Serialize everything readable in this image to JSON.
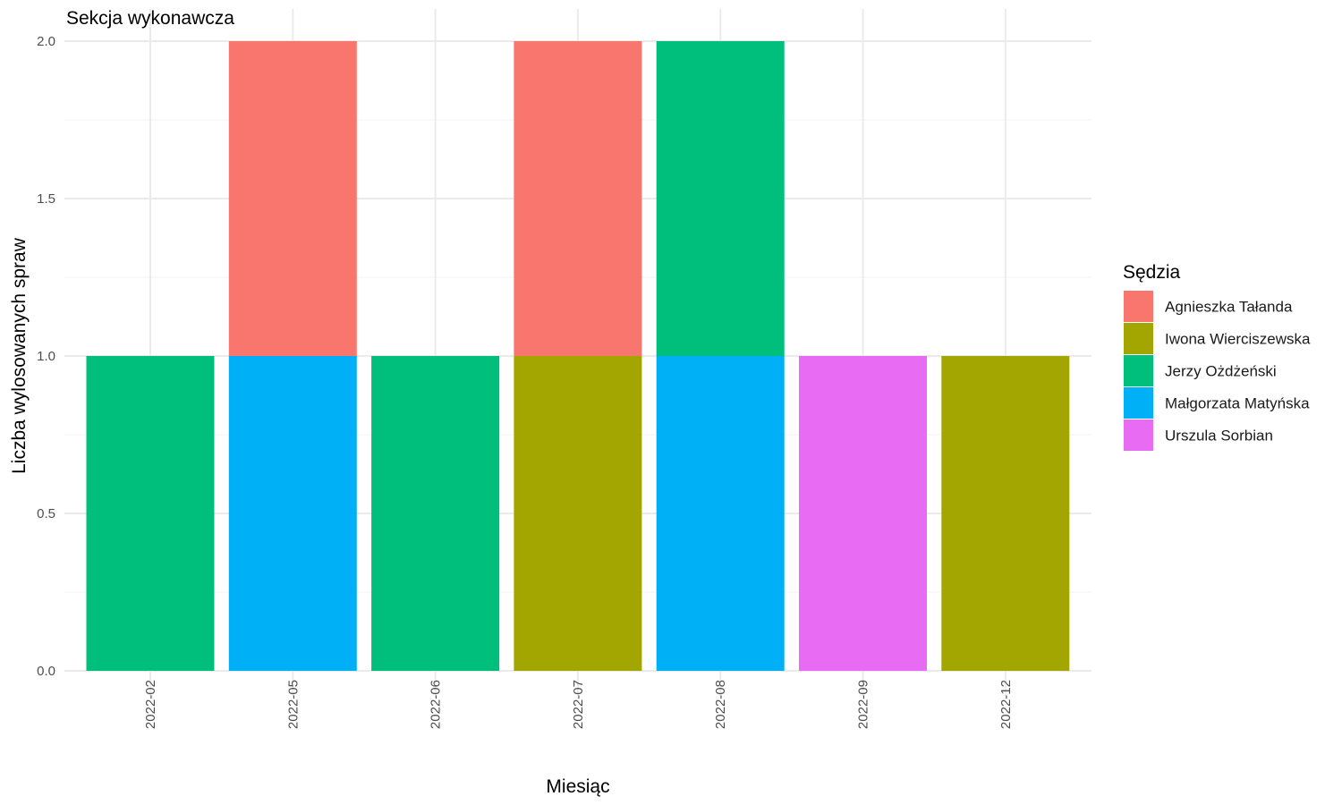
{
  "chart_data": {
    "type": "bar",
    "stacked": true,
    "title": "Sekcja wykonawcza",
    "xlabel": "Miesiąc",
    "ylabel": "Liczba wylosowanych spraw",
    "categories": [
      "2022-02",
      "2022-05",
      "2022-06",
      "2022-07",
      "2022-08",
      "2022-09",
      "2022-12"
    ],
    "ylim": [
      0,
      2
    ],
    "y_ticks": [
      "0.0",
      "0.5",
      "1.0",
      "1.5",
      "2.0"
    ],
    "grid": true,
    "legend": {
      "title": "Sędzia",
      "position": "right"
    },
    "series": [
      {
        "name": "Agnieszka Tałanda",
        "color": "#F8766D",
        "values": [
          0,
          1,
          0,
          1,
          0,
          0,
          0
        ]
      },
      {
        "name": "Iwona Wierciszewska",
        "color": "#A3A500",
        "values": [
          0,
          0,
          0,
          1,
          0,
          0,
          1
        ]
      },
      {
        "name": "Jerzy Ożdżeński",
        "color": "#00BF7D",
        "values": [
          1,
          0,
          1,
          0,
          1,
          0,
          0
        ]
      },
      {
        "name": "Małgorzata Matyńska",
        "color": "#00B0F6",
        "values": [
          0,
          1,
          0,
          0,
          1,
          0,
          0
        ]
      },
      {
        "name": "Urszula Sorbian",
        "color": "#E76BF3",
        "values": [
          0,
          0,
          0,
          0,
          0,
          1,
          0
        ]
      }
    ]
  }
}
